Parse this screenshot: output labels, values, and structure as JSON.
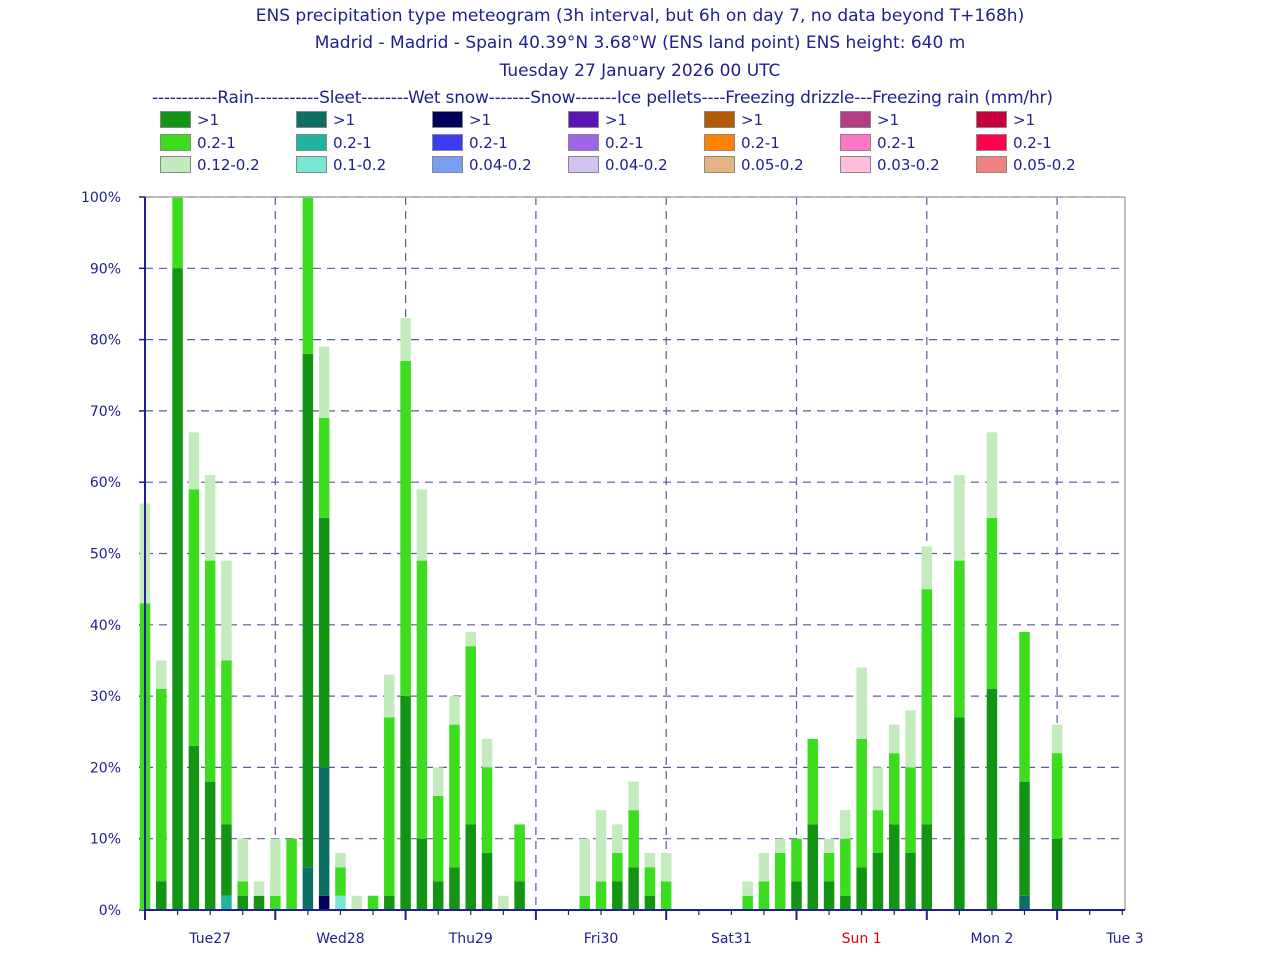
{
  "title": {
    "line1": "ENS precipitation type meteogram (3h interval, but 6h on day 7, no data beyond T+168h)",
    "line2": "Madrid - Madrid - Spain 40.39°N 3.68°W (ENS land point) ENS height: 640 m",
    "line3": "Tuesday 27 January 2026 00 UTC"
  },
  "legend_header": "-----------Rain-----------Sleet--------Wet snow-------Snow-------Ice pellets----Freezing drizzle---Freezing rain (mm/hr)",
  "legend": [
    {
      "name": "Rain",
      "items": [
        {
          "label": ">1",
          "color": "#149414"
        },
        {
          "label": "0.2-1",
          "color": "#3cdc1e"
        },
        {
          "label": "0.12-0.2",
          "color": "#c3ebbe"
        }
      ]
    },
    {
      "name": "Sleet",
      "items": [
        {
          "label": ">1",
          "color": "#0f6e64"
        },
        {
          "label": "0.2-1",
          "color": "#1eb4a0"
        },
        {
          "label": "0.1-0.2",
          "color": "#78e6d2"
        }
      ]
    },
    {
      "name": "Wet snow",
      "items": [
        {
          "label": ">1",
          "color": "#00005a"
        },
        {
          "label": "0.2-1",
          "color": "#3c3cf0"
        },
        {
          "label": "0.04-0.2",
          "color": "#78a0f0"
        }
      ]
    },
    {
      "name": "Snow",
      "items": [
        {
          "label": ">1",
          "color": "#5a14b4"
        },
        {
          "label": "0.2-1",
          "color": "#a064e6"
        },
        {
          "label": "0.04-0.2",
          "color": "#d2c3f0"
        }
      ]
    },
    {
      "name": "Ice pellets",
      "items": [
        {
          "label": ">1",
          "color": "#b45a00"
        },
        {
          "label": "0.2-1",
          "color": "#ff8200"
        },
        {
          "label": "0.05-0.2",
          "color": "#e6b482"
        }
      ]
    },
    {
      "name": "Freezing drizzle",
      "items": [
        {
          "label": ">1",
          "color": "#b43c82"
        },
        {
          "label": "0.2-1",
          "color": "#ff78c8"
        },
        {
          "label": "0.03-0.2",
          "color": "#ffbedc"
        }
      ]
    },
    {
      "name": "Freezing rain",
      "items": [
        {
          "label": ">1",
          "color": "#c8003c"
        },
        {
          "label": "0.2-1",
          "color": "#ff0050"
        },
        {
          "label": "0.05-0.2",
          "color": "#f08282"
        }
      ]
    }
  ],
  "chart_data": {
    "type": "bar",
    "stacked": true,
    "x_unit": "hours from 2026-01-27 00 UTC",
    "ylim": [
      0,
      100
    ],
    "y_ticks": [
      "0%",
      "10%",
      "20%",
      "30%",
      "40%",
      "50%",
      "60%",
      "70%",
      "80%",
      "90%",
      "100%"
    ],
    "x_ticks": [
      {
        "label": "Tue27",
        "color": "#1f1f8f"
      },
      {
        "label": "Wed28",
        "color": "#1f1f8f"
      },
      {
        "label": "Thu29",
        "color": "#1f1f8f"
      },
      {
        "label": "Fri30",
        "color": "#1f1f8f"
      },
      {
        "label": "Sat31",
        "color": "#1f1f8f"
      },
      {
        "label": "Sun 1",
        "color": "#e00000"
      },
      {
        "label": "Mon 2",
        "color": "#1f1f8f"
      },
      {
        "label": "Tue 3",
        "color": "#1f1f8f"
      }
    ],
    "grid": true,
    "bars": [
      {
        "t": 0,
        "stack": [
          [
            "#149414",
            0
          ],
          [
            "#3cdc1e",
            43
          ],
          [
            "#c3ebbe",
            14
          ]
        ]
      },
      {
        "t": 3,
        "stack": [
          [
            "#149414",
            4
          ],
          [
            "#3cdc1e",
            27
          ],
          [
            "#c3ebbe",
            4
          ]
        ]
      },
      {
        "t": 6,
        "stack": [
          [
            "#149414",
            90
          ],
          [
            "#3cdc1e",
            10
          ]
        ]
      },
      {
        "t": 9,
        "stack": [
          [
            "#149414",
            23
          ],
          [
            "#3cdc1e",
            36
          ],
          [
            "#c3ebbe",
            8
          ]
        ]
      },
      {
        "t": 12,
        "stack": [
          [
            "#149414",
            18
          ],
          [
            "#3cdc1e",
            31
          ],
          [
            "#c3ebbe",
            12
          ]
        ]
      },
      {
        "t": 15,
        "stack": [
          [
            "#1eb4a0",
            2
          ],
          [
            "#149414",
            10
          ],
          [
            "#3cdc1e",
            23
          ],
          [
            "#c3ebbe",
            14
          ]
        ]
      },
      {
        "t": 18,
        "stack": [
          [
            "#149414",
            2
          ],
          [
            "#3cdc1e",
            2
          ],
          [
            "#c3ebbe",
            6
          ]
        ]
      },
      {
        "t": 21,
        "stack": [
          [
            "#149414",
            2
          ],
          [
            "#c3ebbe",
            2
          ]
        ]
      },
      {
        "t": 24,
        "stack": [
          [
            "#3cdc1e",
            2
          ],
          [
            "#c3ebbe",
            8
          ]
        ]
      },
      {
        "t": 27,
        "stack": [
          [
            "#3cdc1e",
            10
          ]
        ]
      },
      {
        "t": 30,
        "stack": [
          [
            "#0f6e64",
            6
          ],
          [
            "#149414",
            72
          ],
          [
            "#3cdc1e",
            22
          ]
        ]
      },
      {
        "t": 33,
        "stack": [
          [
            "#00005a",
            2
          ],
          [
            "#0f6e64",
            18
          ],
          [
            "#149414",
            35
          ],
          [
            "#3cdc1e",
            14
          ],
          [
            "#c3ebbe",
            10
          ]
        ]
      },
      {
        "t": 36,
        "stack": [
          [
            "#78e6d2",
            2
          ],
          [
            "#3cdc1e",
            4
          ],
          [
            "#c3ebbe",
            2
          ]
        ]
      },
      {
        "t": 39,
        "stack": [
          [
            "#c3ebbe",
            2
          ]
        ]
      },
      {
        "t": 42,
        "stack": [
          [
            "#3cdc1e",
            2
          ]
        ]
      },
      {
        "t": 45,
        "stack": [
          [
            "#149414",
            2
          ],
          [
            "#3cdc1e",
            25
          ],
          [
            "#c3ebbe",
            6
          ]
        ]
      },
      {
        "t": 48,
        "stack": [
          [
            "#149414",
            30
          ],
          [
            "#3cdc1e",
            47
          ],
          [
            "#c3ebbe",
            6
          ]
        ]
      },
      {
        "t": 51,
        "stack": [
          [
            "#149414",
            10
          ],
          [
            "#3cdc1e",
            39
          ],
          [
            "#c3ebbe",
            10
          ]
        ]
      },
      {
        "t": 54,
        "stack": [
          [
            "#149414",
            4
          ],
          [
            "#3cdc1e",
            12
          ],
          [
            "#c3ebbe",
            4
          ]
        ]
      },
      {
        "t": 57,
        "stack": [
          [
            "#149414",
            6
          ],
          [
            "#3cdc1e",
            20
          ],
          [
            "#c3ebbe",
            4
          ]
        ]
      },
      {
        "t": 60,
        "stack": [
          [
            "#149414",
            12
          ],
          [
            "#3cdc1e",
            25
          ],
          [
            "#c3ebbe",
            2
          ]
        ]
      },
      {
        "t": 63,
        "stack": [
          [
            "#149414",
            8
          ],
          [
            "#3cdc1e",
            12
          ],
          [
            "#c3ebbe",
            4
          ]
        ]
      },
      {
        "t": 66,
        "stack": [
          [
            "#c3ebbe",
            2
          ]
        ]
      },
      {
        "t": 69,
        "stack": [
          [
            "#149414",
            4
          ],
          [
            "#3cdc1e",
            8
          ]
        ]
      },
      {
        "t": 81,
        "stack": [
          [
            "#3cdc1e",
            2
          ],
          [
            "#c3ebbe",
            8
          ]
        ]
      },
      {
        "t": 84,
        "stack": [
          [
            "#3cdc1e",
            4
          ],
          [
            "#c3ebbe",
            10
          ]
        ]
      },
      {
        "t": 87,
        "stack": [
          [
            "#149414",
            4
          ],
          [
            "#3cdc1e",
            4
          ],
          [
            "#c3ebbe",
            4
          ]
        ]
      },
      {
        "t": 90,
        "stack": [
          [
            "#149414",
            6
          ],
          [
            "#3cdc1e",
            8
          ],
          [
            "#c3ebbe",
            4
          ]
        ]
      },
      {
        "t": 93,
        "stack": [
          [
            "#149414",
            2
          ],
          [
            "#3cdc1e",
            4
          ],
          [
            "#c3ebbe",
            2
          ]
        ]
      },
      {
        "t": 96,
        "stack": [
          [
            "#3cdc1e",
            4
          ],
          [
            "#c3ebbe",
            4
          ]
        ]
      },
      {
        "t": 111,
        "stack": [
          [
            "#3cdc1e",
            2
          ],
          [
            "#c3ebbe",
            2
          ]
        ]
      },
      {
        "t": 114,
        "stack": [
          [
            "#3cdc1e",
            4
          ],
          [
            "#c3ebbe",
            4
          ]
        ]
      },
      {
        "t": 117,
        "stack": [
          [
            "#3cdc1e",
            8
          ],
          [
            "#c3ebbe",
            2
          ]
        ]
      },
      {
        "t": 120,
        "stack": [
          [
            "#149414",
            4
          ],
          [
            "#3cdc1e",
            6
          ]
        ]
      },
      {
        "t": 123,
        "stack": [
          [
            "#149414",
            12
          ],
          [
            "#3cdc1e",
            12
          ]
        ]
      },
      {
        "t": 126,
        "stack": [
          [
            "#149414",
            4
          ],
          [
            "#3cdc1e",
            4
          ],
          [
            "#c3ebbe",
            2
          ]
        ]
      },
      {
        "t": 129,
        "stack": [
          [
            "#149414",
            2
          ],
          [
            "#3cdc1e",
            8
          ],
          [
            "#c3ebbe",
            4
          ]
        ]
      },
      {
        "t": 132,
        "stack": [
          [
            "#149414",
            6
          ],
          [
            "#3cdc1e",
            18
          ],
          [
            "#c3ebbe",
            10
          ]
        ]
      },
      {
        "t": 135,
        "stack": [
          [
            "#149414",
            8
          ],
          [
            "#3cdc1e",
            6
          ],
          [
            "#c3ebbe",
            6
          ]
        ]
      },
      {
        "t": 138,
        "stack": [
          [
            "#149414",
            12
          ],
          [
            "#3cdc1e",
            10
          ],
          [
            "#c3ebbe",
            4
          ]
        ]
      },
      {
        "t": 141,
        "stack": [
          [
            "#149414",
            8
          ],
          [
            "#3cdc1e",
            12
          ],
          [
            "#c3ebbe",
            8
          ]
        ]
      },
      {
        "t": 144,
        "stack": [
          [
            "#149414",
            12
          ],
          [
            "#3cdc1e",
            33
          ],
          [
            "#c3ebbe",
            6
          ]
        ]
      },
      {
        "t": 150,
        "stack": [
          [
            "#149414",
            27
          ],
          [
            "#3cdc1e",
            22
          ],
          [
            "#c3ebbe",
            12
          ]
        ]
      },
      {
        "t": 156,
        "stack": [
          [
            "#149414",
            31
          ],
          [
            "#3cdc1e",
            24
          ],
          [
            "#c3ebbe",
            12
          ]
        ]
      },
      {
        "t": 162,
        "stack": [
          [
            "#0f6e64",
            2
          ],
          [
            "#149414",
            16
          ],
          [
            "#3cdc1e",
            21
          ]
        ]
      },
      {
        "t": 168,
        "stack": [
          [
            "#149414",
            10
          ],
          [
            "#3cdc1e",
            12
          ],
          [
            "#c3ebbe",
            4
          ]
        ]
      }
    ]
  }
}
